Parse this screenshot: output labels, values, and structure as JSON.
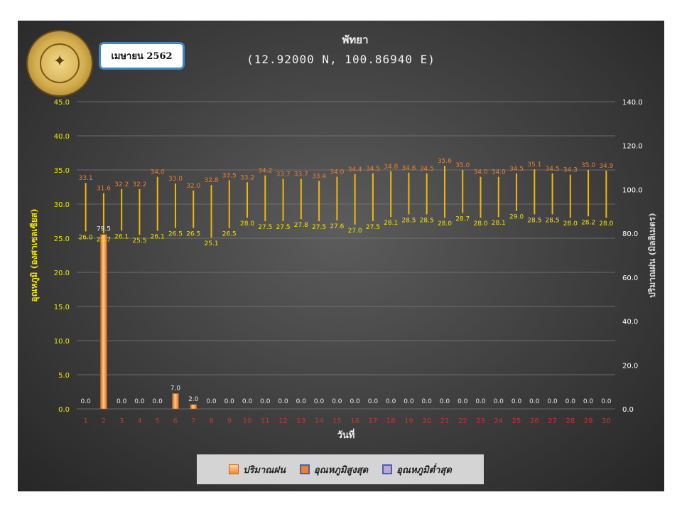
{
  "header": {
    "month_label": "เมษายน 2562",
    "title": "พัทยา",
    "subtitle": "(12.92000 N, 100.86940 E)"
  },
  "colors": {
    "rain": "#f08a34",
    "max_temp": "#f07e2c",
    "min_temp": "#b09fcf",
    "range_line": "#f2b705",
    "left_axis_text": "#f2e400",
    "right_axis_text": "#ffffff",
    "x_tick_text": "#c0392b"
  },
  "chart_data": {
    "type": "bar",
    "title": "พัทยา",
    "subtitle": "(12.92000 N, 100.86940 E)",
    "xlabel": "วันที่",
    "ylabel_left": "อุณหภูมิ (องศาเซลเซียส)",
    "ylabel_right": "ปริมาณฝน (มิลลิเมตร)",
    "ylim_left": [
      0,
      45
    ],
    "ylim_right": [
      0,
      140
    ],
    "yticks_left": [
      "0.0",
      "5.0",
      "10.0",
      "15.0",
      "20.0",
      "25.0",
      "30.0",
      "35.0",
      "40.0",
      "45.0"
    ],
    "yticks_right": [
      "0.0",
      "20.0",
      "40.0",
      "60.0",
      "80.0",
      "100.0",
      "120.0",
      "140.0"
    ],
    "categories": [
      "1",
      "2",
      "3",
      "4",
      "5",
      "6",
      "7",
      "8",
      "9",
      "10",
      "11",
      "12",
      "13",
      "14",
      "15",
      "16",
      "17",
      "18",
      "19",
      "20",
      "21",
      "22",
      "23",
      "24",
      "25",
      "26",
      "27",
      "28",
      "29",
      "30"
    ],
    "grid": true,
    "legend_position": "bottom",
    "series": [
      {
        "name": "ปริมาณฝน",
        "axis": "right",
        "type": "bar",
        "values": [
          0.0,
          79.5,
          0.0,
          0.0,
          0.0,
          7.0,
          2.0,
          0.0,
          0.0,
          0.0,
          0.0,
          0.0,
          0.0,
          0.0,
          0.0,
          0.0,
          0.0,
          0.0,
          0.0,
          0.0,
          0.0,
          0.0,
          0.0,
          0.0,
          0.0,
          0.0,
          0.0,
          0.0,
          0.0,
          0.0
        ]
      },
      {
        "name": "อุณหภูมิสูงสุด",
        "axis": "left",
        "type": "range-top",
        "values": [
          33.1,
          31.6,
          32.2,
          32.2,
          34.0,
          33.0,
          32.0,
          32.8,
          33.5,
          33.2,
          34.2,
          33.7,
          33.7,
          33.4,
          34.0,
          34.4,
          34.5,
          34.8,
          34.6,
          34.5,
          35.6,
          35.0,
          34.0,
          34.0,
          34.5,
          35.1,
          34.5,
          34.3,
          35.0,
          34.9
        ]
      },
      {
        "name": "อุณหภูมิต่ำสุด",
        "axis": "left",
        "type": "range-bottom",
        "values": [
          26.0,
          25.7,
          26.1,
          25.5,
          26.1,
          26.5,
          26.5,
          25.1,
          26.5,
          28.0,
          27.5,
          27.5,
          27.8,
          27.5,
          27.6,
          27.0,
          27.5,
          28.1,
          28.5,
          28.5,
          28.0,
          28.7,
          28.0,
          28.1,
          29.0,
          28.5,
          28.5,
          28.0,
          28.2,
          28.0
        ]
      }
    ]
  }
}
